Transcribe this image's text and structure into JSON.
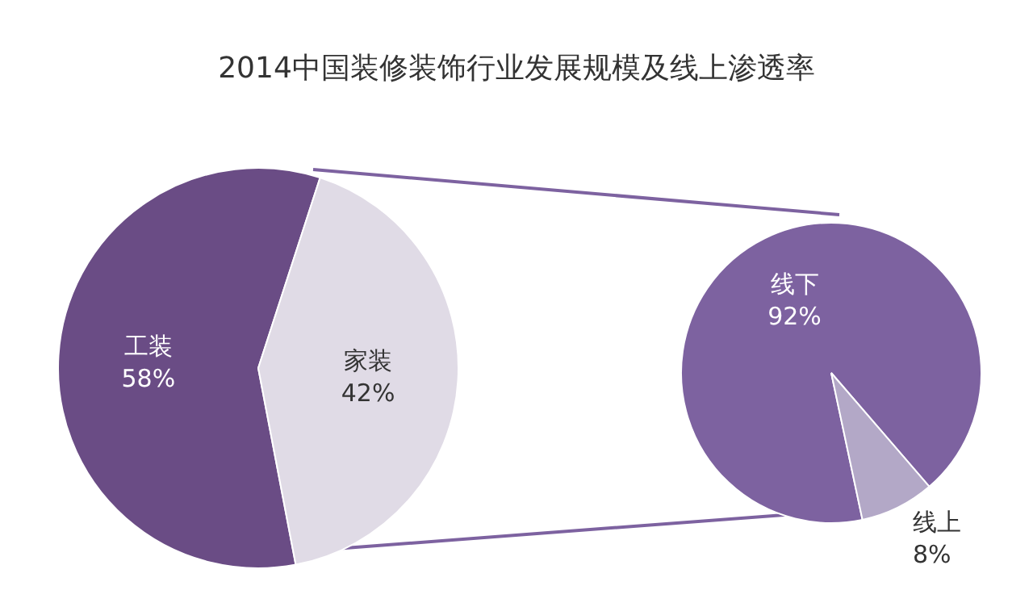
{
  "chart_data": [
    {
      "type": "pie",
      "title": "2014中国装修装饰行业发展规模及线上渗透率",
      "categories": [
        "工装",
        "家装"
      ],
      "values": [
        58,
        42
      ],
      "colors": [
        "#6a4c85",
        "#e0dbe6"
      ],
      "data_labels": true,
      "value_labels": [
        "58%",
        "42%"
      ]
    },
    {
      "type": "pie",
      "categories": [
        "线下",
        "线上"
      ],
      "values": [
        92,
        8
      ],
      "colors": [
        "#7d62a0",
        "#b3a8c7"
      ],
      "data_labels": true,
      "value_labels": [
        "92%",
        "8%"
      ]
    }
  ]
}
